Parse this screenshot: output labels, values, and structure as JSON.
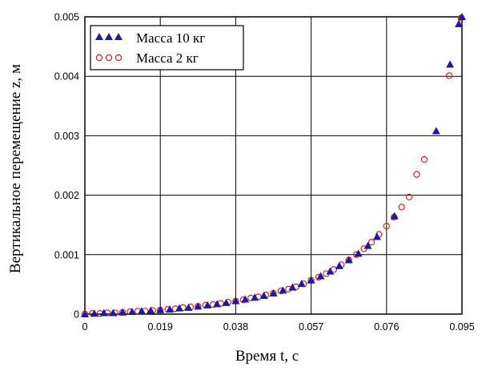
{
  "chart_data": {
    "type": "scatter",
    "title": "",
    "xlabel": "Время t, с",
    "ylabel": "Вертикальное перемещение z, м",
    "xlim": [
      0,
      0.095
    ],
    "ylim": [
      0,
      0.005
    ],
    "x_ticks": [
      0,
      0.019,
      0.038,
      0.057,
      0.076,
      0.095
    ],
    "x_tick_labels": [
      "0",
      "0.019",
      "0.038",
      "0.057",
      "0.076",
      "0.095"
    ],
    "y_ticks": [
      0,
      0.001,
      0.002,
      0.003,
      0.004,
      0.005
    ],
    "y_tick_labels": [
      "0",
      "0.001",
      "0.002",
      "0.003",
      "0.004",
      "0.005"
    ],
    "grid": true,
    "legend_position": "top-left",
    "series": [
      {
        "name": "Масса 10 кг",
        "marker": "triangle-filled",
        "color": "#1a1aa6",
        "points": [
          [
            0.0,
            0.0
          ],
          [
            0.0024,
            1e-05
          ],
          [
            0.0048,
            2e-05
          ],
          [
            0.0071,
            2e-05
          ],
          [
            0.0095,
            3e-05
          ],
          [
            0.0119,
            4e-05
          ],
          [
            0.0143,
            5e-05
          ],
          [
            0.0166,
            6e-05
          ],
          [
            0.019,
            7e-05
          ],
          [
            0.0214,
            8e-05
          ],
          [
            0.0238,
            0.0001
          ],
          [
            0.0261,
            0.00011
          ],
          [
            0.0285,
            0.00013
          ],
          [
            0.0309,
            0.00015
          ],
          [
            0.0333,
            0.00017
          ],
          [
            0.0356,
            0.00019
          ],
          [
            0.038,
            0.00022
          ],
          [
            0.0404,
            0.00025
          ],
          [
            0.0428,
            0.00028
          ],
          [
            0.0451,
            0.00031
          ],
          [
            0.0475,
            0.00035
          ],
          [
            0.0499,
            0.0004
          ],
          [
            0.0523,
            0.00045
          ],
          [
            0.0546,
            0.00051
          ],
          [
            0.057,
            0.00057
          ],
          [
            0.0594,
            0.00064
          ],
          [
            0.0618,
            0.00072
          ],
          [
            0.0641,
            0.00081
          ],
          [
            0.0665,
            0.00091
          ],
          [
            0.0689,
            0.00102
          ],
          [
            0.0713,
            0.00115
          ],
          [
            0.0736,
            0.0013
          ],
          [
            0.078,
            0.00165
          ],
          [
            0.0885,
            0.00308
          ],
          [
            0.092,
            0.0042
          ],
          [
            0.0942,
            0.00488
          ],
          [
            0.095,
            0.005
          ]
        ]
      },
      {
        "name": "Масса 2 кг",
        "marker": "circle-open",
        "color": "#e02020",
        "points": [
          [
            0.0,
            0.0
          ],
          [
            0.0019,
            1e-05
          ],
          [
            0.0038,
            1e-05
          ],
          [
            0.0057,
            2e-05
          ],
          [
            0.0076,
            2e-05
          ],
          [
            0.0095,
            3e-05
          ],
          [
            0.0114,
            4e-05
          ],
          [
            0.0133,
            5e-05
          ],
          [
            0.0152,
            5e-05
          ],
          [
            0.0171,
            6e-05
          ],
          [
            0.019,
            7e-05
          ],
          [
            0.0209,
            8e-05
          ],
          [
            0.0228,
            9e-05
          ],
          [
            0.0247,
            0.00011
          ],
          [
            0.0266,
            0.00012
          ],
          [
            0.0285,
            0.00013
          ],
          [
            0.0304,
            0.00015
          ],
          [
            0.0323,
            0.00016
          ],
          [
            0.0342,
            0.00018
          ],
          [
            0.0361,
            0.0002
          ],
          [
            0.038,
            0.00022
          ],
          [
            0.0399,
            0.00024
          ],
          [
            0.0418,
            0.00027
          ],
          [
            0.0437,
            0.00029
          ],
          [
            0.0456,
            0.00032
          ],
          [
            0.0475,
            0.00035
          ],
          [
            0.0494,
            0.00039
          ],
          [
            0.0513,
            0.00042
          ],
          [
            0.0532,
            0.00046
          ],
          [
            0.0551,
            0.00051
          ],
          [
            0.057,
            0.00057
          ],
          [
            0.0589,
            0.00062
          ],
          [
            0.0608,
            0.00068
          ],
          [
            0.0627,
            0.00075
          ],
          [
            0.0646,
            0.00083
          ],
          [
            0.0665,
            0.00091
          ],
          [
            0.0684,
            0.001
          ],
          [
            0.0703,
            0.0011
          ],
          [
            0.0722,
            0.00121
          ],
          [
            0.0741,
            0.00134
          ],
          [
            0.076,
            0.00148
          ],
          [
            0.0779,
            0.00163
          ],
          [
            0.0798,
            0.0018
          ],
          [
            0.0817,
            0.00197
          ],
          [
            0.0836,
            0.00235
          ],
          [
            0.0855,
            0.0026
          ],
          [
            0.0918,
            0.00401
          ],
          [
            0.0948,
            0.00498
          ]
        ]
      }
    ]
  }
}
